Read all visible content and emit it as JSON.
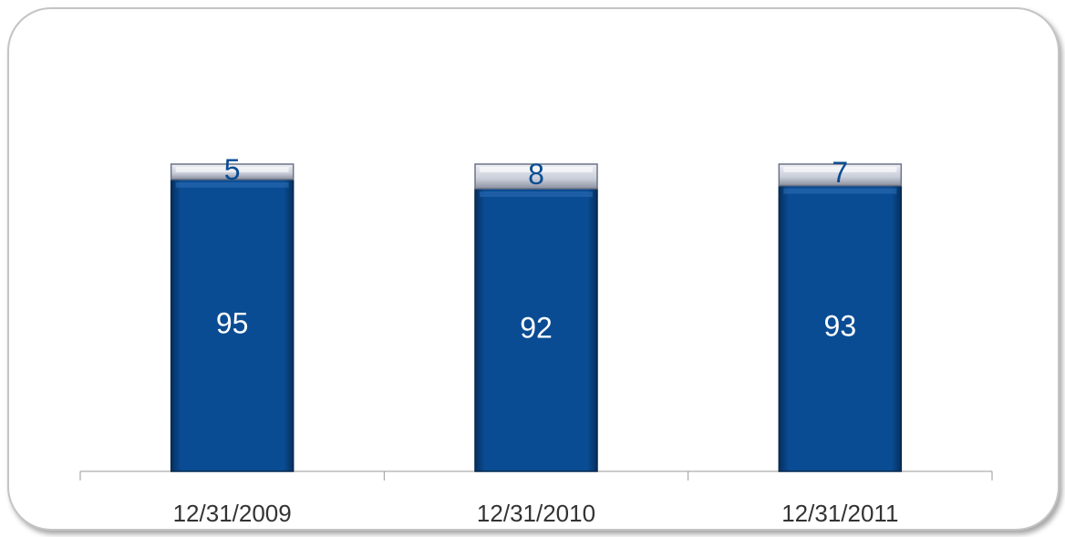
{
  "chart_data": {
    "type": "stacked_bar",
    "categories": [
      "12/31/2009",
      "12/31/2010",
      "12/31/2011"
    ],
    "series": [
      {
        "color": "#0a4c93",
        "values": [
          95,
          92,
          93
        ]
      },
      {
        "color": "#c9cdd8",
        "values": [
          5,
          8,
          7
        ]
      }
    ],
    "ylim": [
      0,
      100
    ]
  }
}
